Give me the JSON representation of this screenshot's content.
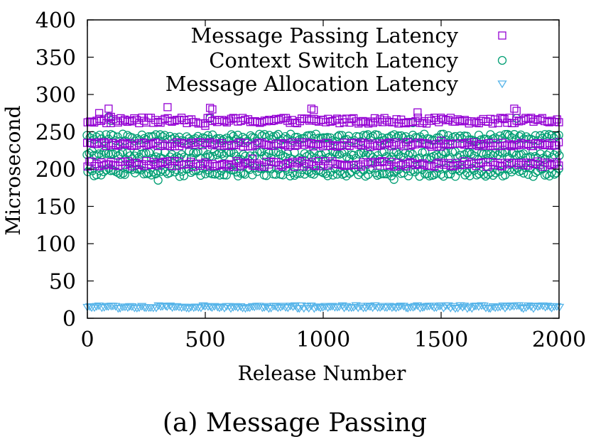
{
  "chart_data": {
    "type": "scatter",
    "caption": "(a) Message Passing",
    "xlabel": "Release Number",
    "ylabel": "Microsecond",
    "xlim": [
      0,
      2000
    ],
    "ylim": [
      0,
      400
    ],
    "x_ticks": [
      0,
      500,
      1000,
      1500,
      2000
    ],
    "y_ticks": [
      0,
      50,
      100,
      150,
      200,
      250,
      300,
      350,
      400
    ],
    "grid": false,
    "legend_position": "top-right",
    "x_step": 10,
    "series": [
      {
        "name": "Message Passing Latency",
        "color": "#9400d3",
        "marker": "square",
        "bands": [
          265,
          233,
          207
        ],
        "spread": [
          4,
          3,
          4
        ],
        "outliers": [
          [
            50,
            275
          ],
          [
            90,
            281
          ],
          [
            100,
            270
          ],
          [
            340,
            283
          ],
          [
            520,
            282
          ],
          [
            530,
            280
          ],
          [
            950,
            281
          ],
          [
            960,
            279
          ],
          [
            1400,
            276
          ],
          [
            1810,
            281
          ],
          [
            1820,
            278
          ],
          [
            500,
            258
          ],
          [
            1500,
            238
          ],
          [
            700,
            214
          ]
        ]
      },
      {
        "name": "Context Switch Latency",
        "color": "#009e73",
        "marker": "circle",
        "bands": [
          242,
          218,
          196
        ],
        "spread": [
          5,
          6,
          6
        ],
        "outliers": [
          [
            90,
            270
          ],
          [
            100,
            265
          ],
          [
            520,
            268
          ],
          [
            1380,
            262
          ],
          [
            1820,
            268
          ],
          [
            300,
            185
          ],
          [
            1300,
            186
          ]
        ]
      },
      {
        "name": "Message Allocation Latency",
        "color": "#56b4e9",
        "marker": "triangle-down",
        "bands": [
          15
        ],
        "spread": [
          2
        ],
        "outliers": []
      }
    ]
  }
}
